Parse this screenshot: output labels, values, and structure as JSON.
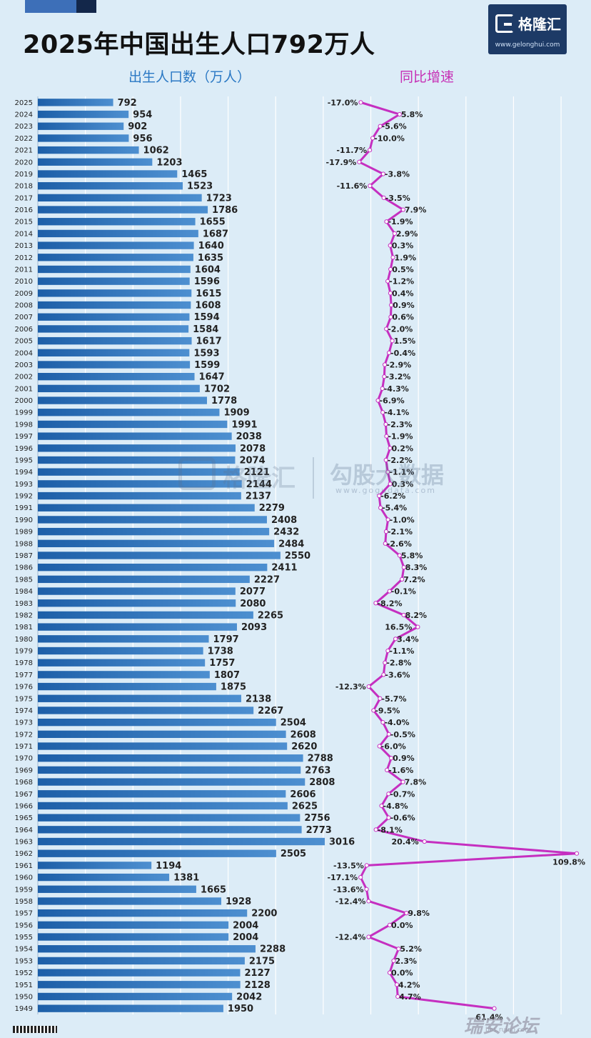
{
  "title": "2025年中国出生人口792万人",
  "legend": {
    "left": "出生人口数（万人）",
    "right": "同比增速"
  },
  "logo": {
    "name": "格隆汇",
    "url": "www.gelonghui.com"
  },
  "watermark": {
    "name": "格隆汇",
    "text": "勾股大数据",
    "url": "www.gogudata.com"
  },
  "corner_mark": {
    "text": "瑞安论坛",
    "url": "bbs.ruian.com"
  },
  "colors": {
    "bar": "#1d5fa8",
    "bar_light": "#4d8fd0",
    "line": "#c52fc0",
    "background": "#dcecf7",
    "grid": "#ffffff"
  },
  "chart_data": {
    "type": "bar+line",
    "orientation": "horizontal",
    "y_categories": [
      "2025",
      "2024",
      "2023",
      "2022",
      "2021",
      "2020",
      "2019",
      "2018",
      "2017",
      "2016",
      "2015",
      "2014",
      "2013",
      "2012",
      "2011",
      "2010",
      "2009",
      "2008",
      "2007",
      "2006",
      "2005",
      "2004",
      "2003",
      "2002",
      "2001",
      "2000",
      "1999",
      "1998",
      "1997",
      "1996",
      "1995",
      "1994",
      "1993",
      "1992",
      "1991",
      "1990",
      "1989",
      "1988",
      "1987",
      "1986",
      "1985",
      "1984",
      "1983",
      "1982",
      "1981",
      "1980",
      "1979",
      "1978",
      "1977",
      "1976",
      "1975",
      "1974",
      "1973",
      "1972",
      "1971",
      "1970",
      "1969",
      "1968",
      "1967",
      "1966",
      "1965",
      "1964",
      "1963",
      "1962",
      "1961",
      "1960",
      "1959",
      "1958",
      "1957",
      "1956",
      "1955",
      "1954",
      "1953",
      "1952",
      "1951",
      "1950",
      "1949"
    ],
    "series": [
      {
        "name": "出生人口数（万人）",
        "type": "bar",
        "values": [
          792,
          954,
          902,
          956,
          1062,
          1203,
          1465,
          1523,
          1723,
          1786,
          1655,
          1687,
          1640,
          1635,
          1604,
          1596,
          1615,
          1608,
          1594,
          1584,
          1617,
          1593,
          1599,
          1647,
          1702,
          1778,
          1909,
          1991,
          2038,
          2078,
          2074,
          2121,
          2144,
          2137,
          2279,
          2408,
          2432,
          2484,
          2550,
          2411,
          2227,
          2077,
          2080,
          2265,
          2093,
          1797,
          1738,
          1757,
          1807,
          1875,
          2138,
          2267,
          2504,
          2608,
          2620,
          2788,
          2763,
          2808,
          2606,
          2625,
          2756,
          2773,
          3016,
          2505,
          1194,
          1381,
          1665,
          1928,
          2200,
          2004,
          2004,
          2288,
          2175,
          2127,
          2128,
          2042,
          1950
        ]
      },
      {
        "name": "同比增速",
        "type": "line",
        "values": [
          -17.0,
          5.8,
          -5.6,
          -10.0,
          -11.7,
          -17.9,
          -3.8,
          -11.6,
          -3.5,
          7.9,
          -1.9,
          2.9,
          0.3,
          1.9,
          0.5,
          -1.2,
          0.4,
          0.9,
          0.6,
          -2.0,
          1.5,
          -0.4,
          -2.9,
          -3.2,
          -4.3,
          -6.9,
          -4.1,
          -2.3,
          -1.9,
          0.2,
          -2.2,
          -1.1,
          0.3,
          -6.2,
          -5.4,
          -1.0,
          -2.1,
          -2.6,
          5.8,
          8.3,
          7.2,
          -0.1,
          -8.2,
          8.2,
          16.5,
          3.4,
          -1.1,
          -2.8,
          -3.6,
          -12.3,
          -5.7,
          -9.5,
          -4.0,
          -0.5,
          -6.0,
          0.9,
          -1.6,
          7.8,
          -0.7,
          -4.8,
          -0.6,
          -8.1,
          20.4,
          109.8,
          -13.5,
          -17.1,
          -13.6,
          -12.4,
          9.8,
          0.0,
          -12.4,
          5.2,
          2.3,
          0.0,
          4.2,
          4.7,
          61.4
        ],
        "labels": [
          "-17.0%",
          "5.8%",
          "-5.6%",
          "-10.0%",
          "-11.7%",
          "-17.9%",
          "-3.8%",
          "-11.6%",
          "-3.5%",
          "7.9%",
          "-1.9%",
          "2.9%",
          "0.3%",
          "1.9%",
          "0.5%",
          "-1.2%",
          "0.4%",
          "0.9%",
          "0.6%",
          "-2.0%",
          "1.5%",
          "-0.4%",
          "-2.9%",
          "-3.2%",
          "-4.3%",
          "-6.9%",
          "-4.1%",
          "-2.3%",
          "-1.9%",
          "0.2%",
          "-2.2%",
          "-1.1%",
          "0.3%",
          "-6.2%",
          "-5.4%",
          "-1.0%",
          "-2.1%",
          "-2.6%",
          "5.8%",
          "8.3%",
          "7.2%",
          "-0.1%",
          "-8.2%",
          "8.2%",
          "16.5%",
          "3.4%",
          "-1.1%",
          "-2.8%",
          "-3.6%",
          "-12.3%",
          "-5.7%",
          "-9.5%",
          "-4.0%",
          "-0.5%",
          "-6.0%",
          "0.9%",
          "-1.6%",
          "7.8%",
          "-0.7%",
          "-4.8%",
          "-0.6%",
          "-8.1%",
          "20.4%",
          "109.8%",
          "-13.5%",
          "-17.1%",
          "-13.6%",
          "-12.4%",
          "9.8%",
          "0.0%",
          "-12.4%",
          "5.2%",
          "2.3%",
          "0.0%",
          "4.2%",
          "4.7%",
          "61.4%"
        ]
      }
    ],
    "bar_axis_range": [
      0,
      5000
    ],
    "line_axis_range": [
      -60,
      120
    ],
    "grid": true,
    "legend_position": "top"
  }
}
